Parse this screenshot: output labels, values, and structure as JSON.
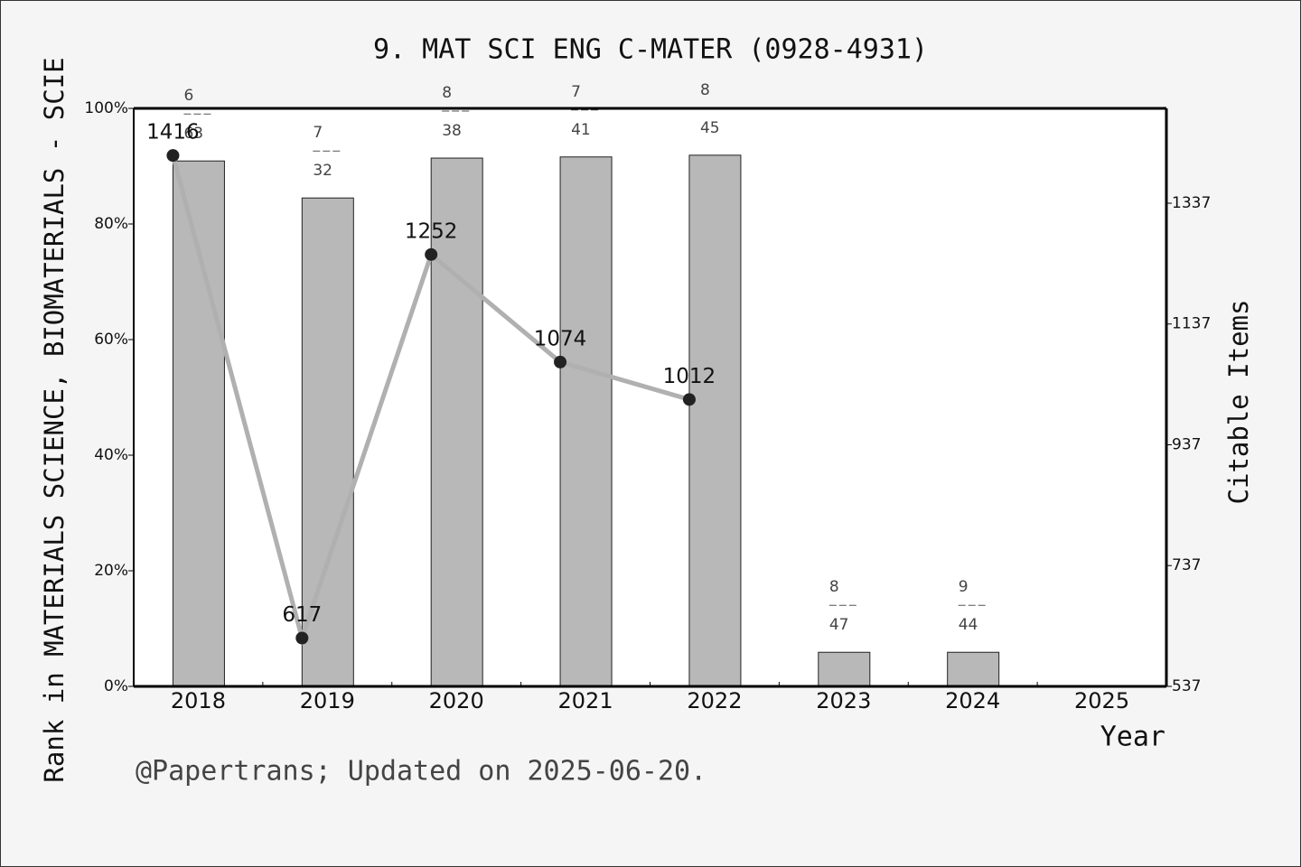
{
  "chart_data": {
    "type": "bar",
    "title": "9. MAT SCI ENG C-MATER (0928-4931)",
    "x_label": "Year",
    "y_label": "Rank in MATERIALS SCIENCE, BIOMATERIALS - SCIE",
    "y2_label": "Citable Items",
    "footnote": "@Papertrans; Updated on 2025-06-20.",
    "categories": [
      "2018",
      "2019",
      "2020",
      "2021",
      "2022",
      "2023",
      "2024",
      "2025"
    ],
    "series": [
      {
        "type": "bar",
        "color": "#b8b8b8",
        "values": [
          90.9,
          84.5,
          91.4,
          91.6,
          91.9,
          5.9,
          5.9,
          null
        ],
        "ranks": [
          6,
          7,
          8,
          7,
          8,
          8,
          9,
          null
        ],
        "totals": [
          63,
          32,
          38,
          41,
          45,
          47,
          44,
          null
        ]
      },
      {
        "type": "line",
        "axis": "y2",
        "color": "#b0b0b0",
        "marker_color": "#222222",
        "values": [
          1416,
          617,
          1252,
          1074,
          1012,
          null,
          null,
          null
        ]
      }
    ],
    "ylim": [
      0,
      100
    ],
    "yticks": [
      {
        "value": 0,
        "label": "0%"
      },
      {
        "value": 20,
        "label": "20%"
      },
      {
        "value": 40,
        "label": "40%"
      },
      {
        "value": 60,
        "label": "60%"
      },
      {
        "value": 80,
        "label": "80%"
      },
      {
        "value": 100,
        "label": "100%"
      }
    ],
    "y2lim": [
      537,
      1494
    ],
    "y2ticks": [
      537,
      737,
      937,
      1137,
      1337
    ]
  }
}
